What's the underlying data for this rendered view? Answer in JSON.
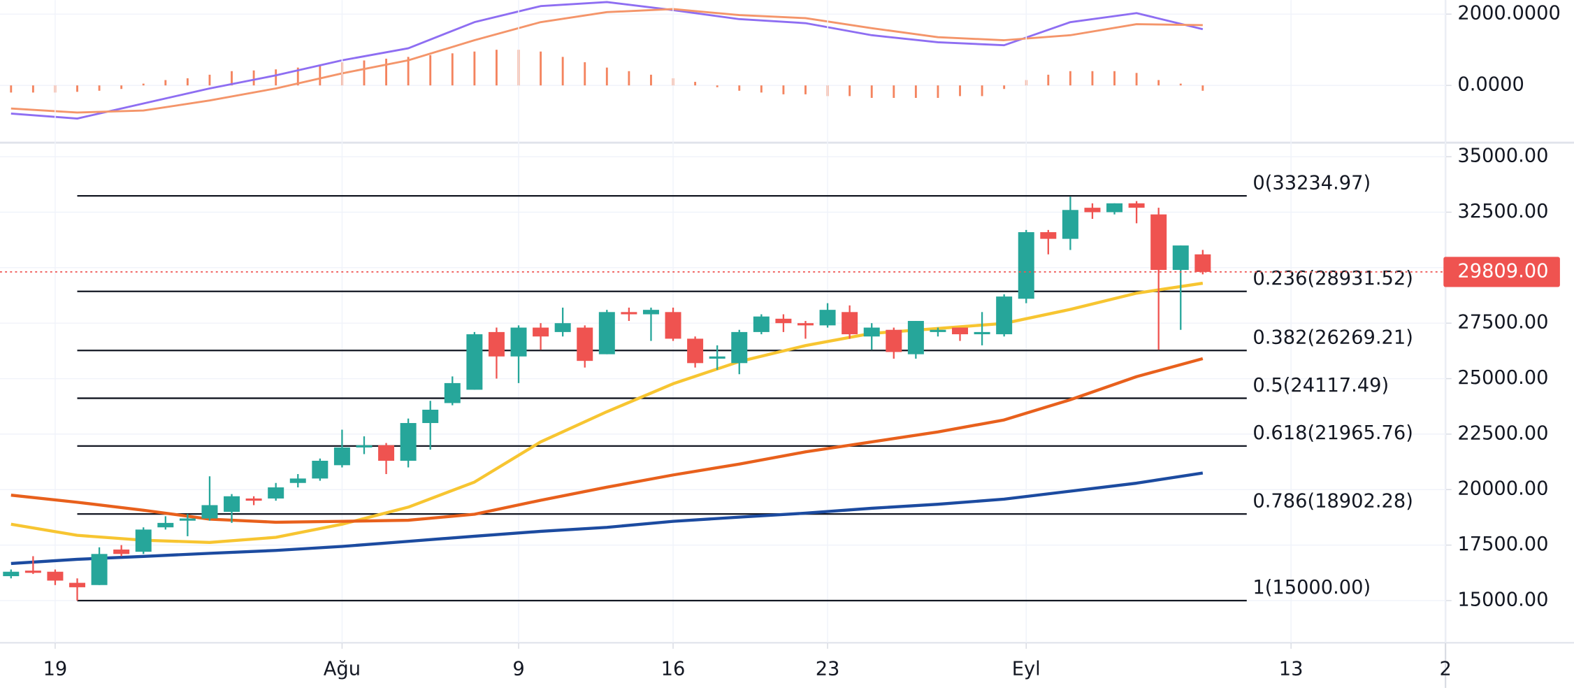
{
  "chart_data": [
    {
      "type": "macd",
      "xlim": [
        -0.5,
        65
      ],
      "ylim": [
        -1606,
        2394
      ],
      "yticks": [
        {
          "value": 2000,
          "label": "2000.0000"
        },
        {
          "value": 0,
          "label": "0.0000"
        }
      ],
      "series": [
        {
          "color": "#8e6ef2",
          "x": [
            0,
            3,
            6,
            9,
            12,
            15,
            18,
            21,
            24,
            27,
            30,
            33,
            36,
            39,
            42,
            45,
            48,
            51,
            54
          ],
          "values": [
            -789,
            -930,
            -507,
            -85,
            282,
            704,
            1042,
            1775,
            2225,
            2338,
            2113,
            1859,
            1746,
            1408,
            1211,
            1127,
            1775,
            2028,
            1577
          ]
        },
        {
          "color": "#f4956a",
          "x": [
            0,
            3,
            6,
            9,
            12,
            15,
            18,
            21,
            24,
            27,
            30,
            33,
            36,
            39,
            42,
            45,
            48,
            51,
            54
          ],
          "values": [
            -648,
            -761,
            -704,
            -423,
            -85,
            338,
            704,
            1268,
            1775,
            2056,
            2141,
            1972,
            1887,
            1606,
            1352,
            1268,
            1408,
            1718,
            1690
          ]
        }
      ],
      "histogram": {
        "color": "#f4845f",
        "x": [
          0,
          1,
          2,
          3,
          4,
          5,
          6,
          7,
          8,
          9,
          10,
          11,
          12,
          13,
          14,
          15,
          16,
          17,
          18,
          19,
          20,
          21,
          22,
          23,
          24,
          25,
          26,
          27,
          28,
          29,
          30,
          31,
          32,
          33,
          34,
          35,
          36,
          37,
          38,
          39,
          40,
          41,
          42,
          43,
          44,
          45,
          46,
          47,
          48,
          49,
          50,
          51,
          52,
          53,
          54
        ],
        "values": [
          -200,
          -200,
          -200,
          -180,
          -150,
          -100,
          50,
          150,
          200,
          300,
          400,
          420,
          450,
          500,
          550,
          650,
          700,
          750,
          800,
          850,
          900,
          950,
          1000,
          1000,
          950,
          800,
          650,
          500,
          400,
          300,
          200,
          100,
          -50,
          -150,
          -200,
          -250,
          -250,
          -300,
          -300,
          -350,
          -350,
          -350,
          -350,
          -300,
          -300,
          -100,
          150,
          300,
          400,
          400,
          400,
          350,
          150,
          50,
          -150
        ]
      }
    },
    {
      "type": "candlestick",
      "xlim": [
        -0.5,
        65
      ],
      "ylim": [
        13100,
        35633
      ],
      "xticks": [
        {
          "value": 2,
          "label": "19"
        },
        {
          "value": 15,
          "label": "Ağu"
        },
        {
          "value": 23,
          "label": "9"
        },
        {
          "value": 30,
          "label": "16"
        },
        {
          "value": 37,
          "label": "23"
        },
        {
          "value": 46,
          "label": "Eyl"
        },
        {
          "value": 58,
          "label": "13"
        },
        {
          "value": 65,
          "label": "2"
        }
      ],
      "yticks": [
        {
          "value": 35000,
          "label": "35000.00"
        },
        {
          "value": 32500,
          "label": "32500.00"
        },
        {
          "value": 30000,
          "label": "30000.00"
        },
        {
          "value": 27500,
          "label": "27500.00"
        },
        {
          "value": 25000,
          "label": "25000.00"
        },
        {
          "value": 22500,
          "label": "22500.00"
        },
        {
          "value": 20000,
          "label": "20000.00"
        },
        {
          "value": 17500,
          "label": "17500.00"
        },
        {
          "value": 15000,
          "label": "15000.00"
        }
      ],
      "up_color": "#26a69a",
      "down_color": "#ef5350",
      "candles": {
        "x": [
          0,
          1,
          2,
          3,
          4,
          5,
          6,
          7,
          8,
          9,
          10,
          11,
          12,
          13,
          14,
          15,
          16,
          17,
          18,
          19,
          20,
          21,
          22,
          23,
          24,
          25,
          26,
          27,
          28,
          29,
          30,
          31,
          32,
          33,
          34,
          35,
          36,
          37,
          38,
          39,
          40,
          41,
          42,
          43,
          44,
          45,
          46,
          47,
          48,
          49,
          50,
          51,
          52,
          53,
          54
        ],
        "open": [
          16100,
          16350,
          16300,
          15800,
          15700,
          17300,
          17200,
          18300,
          18600,
          18700,
          19000,
          19600,
          19600,
          20300,
          20500,
          21100,
          21900,
          22000,
          21300,
          23000,
          23900,
          24500,
          27100,
          26000,
          27300,
          27100,
          27300,
          26100,
          28000,
          27900,
          28000,
          26800,
          25900,
          25700,
          27100,
          27700,
          27500,
          27400,
          28000,
          26900,
          27200,
          26100,
          27100,
          27300,
          27000,
          27000,
          28600,
          31600,
          31300,
          32700,
          32500,
          32900,
          32400,
          29900,
          30600
        ],
        "high": [
          16400,
          17000,
          16400,
          16000,
          17400,
          17500,
          18300,
          18800,
          18900,
          20600,
          19800,
          19700,
          20300,
          20700,
          21400,
          22700,
          22400,
          22100,
          23200,
          24000,
          25100,
          27100,
          27300,
          27400,
          27500,
          28200,
          27400,
          28100,
          28200,
          28200,
          28200,
          26900,
          26500,
          27200,
          27900,
          27900,
          27600,
          28400,
          28300,
          27500,
          27300,
          27600,
          27300,
          27300,
          28000,
          28800,
          31700,
          31700,
          33200,
          32900,
          32900,
          33000,
          32700,
          31000,
          30800
        ],
        "low": [
          16000,
          16200,
          15700,
          15000,
          15700,
          17000,
          17100,
          18200,
          17900,
          18600,
          18500,
          19300,
          19500,
          20100,
          20400,
          21000,
          21600,
          20700,
          21000,
          21800,
          23800,
          24500,
          25000,
          24800,
          26300,
          26900,
          25500,
          26100,
          27600,
          26700,
          26700,
          25500,
          25400,
          25200,
          27000,
          27100,
          26800,
          27300,
          26800,
          26300,
          25900,
          25900,
          26900,
          26700,
          26500,
          26900,
          28400,
          30600,
          30800,
          32200,
          32400,
          32000,
          26300,
          27200,
          29700
        ],
        "close": [
          16300,
          16250,
          15900,
          15600,
          17100,
          17100,
          18200,
          18500,
          18700,
          19300,
          19700,
          19500,
          20100,
          20500,
          21300,
          21900,
          22000,
          21300,
          23000,
          23600,
          24800,
          27000,
          26000,
          27300,
          26900,
          27500,
          25800,
          28000,
          27900,
          28100,
          26800,
          25700,
          26000,
          27100,
          27800,
          27500,
          27400,
          28100,
          27000,
          27300,
          26200,
          27600,
          27200,
          27000,
          27100,
          28700,
          31600,
          31300,
          32600,
          32500,
          32900,
          32700,
          29900,
          31000,
          29809
        ]
      },
      "moving_averages": [
        {
          "color": "#f7c531",
          "x": [
            0,
            3,
            6,
            9,
            12,
            15,
            18,
            21,
            24,
            27,
            30,
            33,
            36,
            39,
            42,
            45,
            48,
            51,
            54
          ],
          "values": [
            18440,
            17940,
            17720,
            17620,
            17850,
            18440,
            19210,
            20340,
            22150,
            23510,
            24770,
            25770,
            26490,
            27040,
            27260,
            27490,
            28120,
            28850,
            29300
          ]
        },
        {
          "color": "#e8601c",
          "x": [
            0,
            3,
            6,
            9,
            12,
            15,
            18,
            21,
            24,
            27,
            30,
            33,
            36,
            39,
            42,
            45,
            48,
            51,
            54
          ],
          "values": [
            19750,
            19430,
            19070,
            18670,
            18530,
            18570,
            18620,
            18890,
            19520,
            20110,
            20660,
            21150,
            21700,
            22150,
            22600,
            23140,
            24050,
            25090,
            25900
          ]
        },
        {
          "color": "#1c4ba0",
          "x": [
            0,
            3,
            6,
            9,
            12,
            15,
            18,
            21,
            24,
            27,
            30,
            33,
            36,
            39,
            42,
            45,
            48,
            51,
            54
          ],
          "values": [
            16670,
            16860,
            16990,
            17130,
            17260,
            17440,
            17670,
            17900,
            18120,
            18300,
            18570,
            18760,
            18940,
            19160,
            19340,
            19570,
            19930,
            20290,
            20750
          ]
        }
      ],
      "fib_levels": [
        {
          "price": 33234.97,
          "label": "0(33234.97)"
        },
        {
          "price": 28931.52,
          "label": "0.236(28931.52)"
        },
        {
          "price": 26269.21,
          "label": "0.382(26269.21)"
        },
        {
          "price": 24117.49,
          "label": "0.5(24117.49)"
        },
        {
          "price": 21965.76,
          "label": "0.618(21965.76)"
        },
        {
          "price": 18902.28,
          "label": "0.786(18902.28)"
        },
        {
          "price": 15000,
          "label": "1(15000.00)"
        }
      ],
      "last_price": {
        "value": 29809,
        "label": "29809.00",
        "color": "#ef5350"
      }
    }
  ]
}
